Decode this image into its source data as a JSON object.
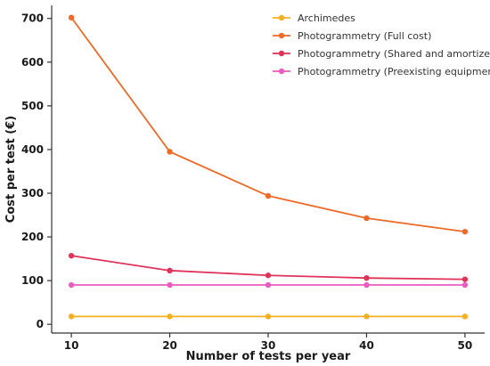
{
  "chart_data": {
    "type": "line",
    "title": "",
    "xlabel": "Number of tests per year",
    "ylabel": "Cost per test (€)",
    "x": [
      10,
      20,
      30,
      40,
      50
    ],
    "xlim": [
      8,
      52
    ],
    "ylim": [
      -20,
      730
    ],
    "xticks": [
      10,
      20,
      30,
      40,
      50
    ],
    "yticks": [
      0,
      100,
      200,
      300,
      400,
      500,
      600,
      700
    ],
    "grid": false,
    "legend_position": "top-right",
    "series": [
      {
        "name": "Archimedes",
        "color": "#f5b021",
        "values": [
          18,
          18,
          18,
          18,
          18
        ]
      },
      {
        "name": "Photogrammetry (Full cost)",
        "color": "#ee6a26",
        "values": [
          702,
          395,
          294,
          243,
          212
        ]
      },
      {
        "name": "Photogrammetry (Shared and amortized)",
        "color": "#e0335a",
        "values": [
          157,
          123,
          112,
          106,
          103
        ]
      },
      {
        "name": "Photogrammetry (Preexisting equipment)",
        "color": "#ea5cc0",
        "values": [
          90,
          90,
          90,
          90,
          90
        ]
      }
    ]
  }
}
